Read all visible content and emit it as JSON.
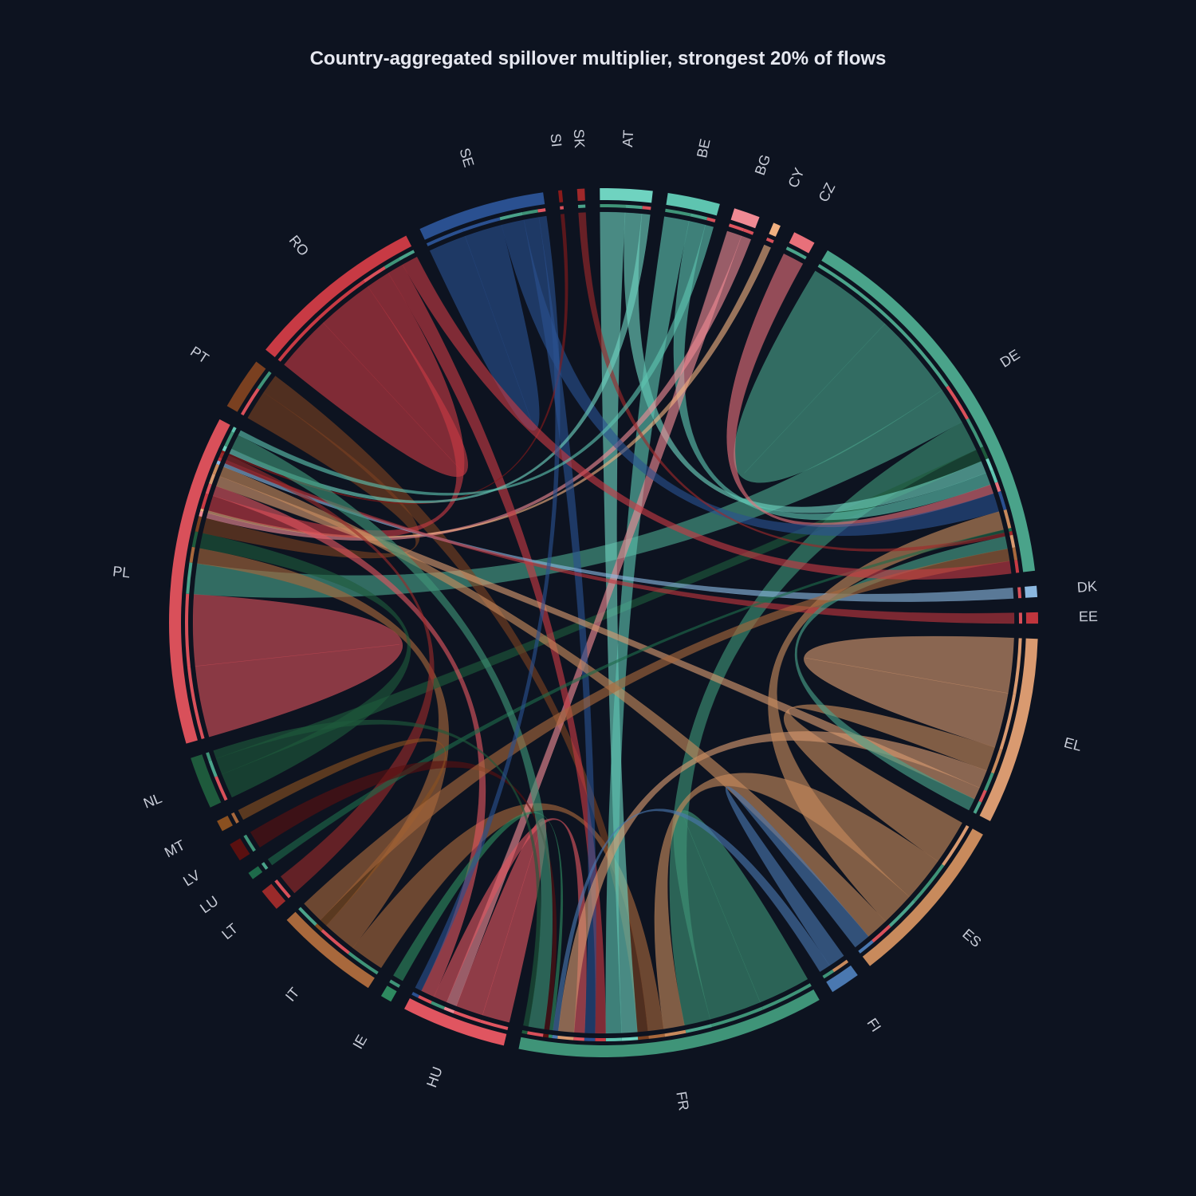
{
  "chart_data": {
    "type": "chord",
    "title": "Country-aggregated spillover multiplier, strongest 20% of flows",
    "categories": [
      "AT",
      "BE",
      "BG",
      "CY",
      "CZ",
      "DE",
      "DK",
      "EE",
      "EL",
      "ES",
      "FI",
      "FR",
      "HU",
      "IE",
      "IT",
      "LT",
      "LU",
      "LV",
      "MT",
      "NL",
      "PL",
      "PT",
      "RO",
      "SE",
      "SI",
      "SK"
    ],
    "values": [
      7,
      7,
      3.5,
      1,
      3,
      52,
      1.5,
      1.5,
      25,
      23,
      4,
      41,
      14,
      1.5,
      14,
      3,
      1,
      2.5,
      1.5,
      7,
      44,
      7,
      24,
      17,
      0.5,
      1
    ],
    "colors": [
      "#6fd3c0",
      "#5ec4b0",
      "#f08a94",
      "#f0b080",
      "#e8707a",
      "#4aa38a",
      "#8bb8e0",
      "#c0353d",
      "#d99a70",
      "#c88a5c",
      "#4a78b0",
      "#3f9478",
      "#e05560",
      "#2e8a60",
      "#a8683c",
      "#9a2a2a",
      "#1e6a4a",
      "#5a1010",
      "#8a5020",
      "#1e5a3c",
      "#d9505a",
      "#7a4020",
      "#c83a44",
      "#2a5090",
      "#8a1a1a",
      "#a0282a"
    ],
    "flows": [
      {
        "source": 20,
        "target": 20,
        "value": 14
      },
      {
        "source": 5,
        "target": 5,
        "value": 14
      },
      {
        "source": 8,
        "target": 8,
        "value": 9
      },
      {
        "source": 11,
        "target": 11,
        "value": 10
      },
      {
        "source": 22,
        "target": 22,
        "value": 7
      },
      {
        "source": 23,
        "target": 23,
        "value": 5
      },
      {
        "source": 12,
        "target": 12,
        "value": 4
      },
      {
        "source": 5,
        "target": 20,
        "value": 6
      },
      {
        "source": 11,
        "target": 5,
        "value": 5
      },
      {
        "source": 9,
        "target": 8,
        "value": 4
      },
      {
        "source": 9,
        "target": 11,
        "value": 4
      },
      {
        "source": 14,
        "target": 11,
        "value": 3
      },
      {
        "source": 14,
        "target": 20,
        "value": 3
      },
      {
        "source": 19,
        "target": 20,
        "value": 3
      },
      {
        "source": 19,
        "target": 5,
        "value": 2
      },
      {
        "source": 21,
        "target": 20,
        "value": 3
      },
      {
        "source": 21,
        "target": 11,
        "value": 2
      },
      {
        "source": 0,
        "target": 11,
        "value": 3
      },
      {
        "source": 0,
        "target": 5,
        "value": 2
      },
      {
        "source": 1,
        "target": 11,
        "value": 3
      },
      {
        "source": 1,
        "target": 5,
        "value": 2
      },
      {
        "source": 2,
        "target": 12,
        "value": 1.5
      },
      {
        "source": 2,
        "target": 20,
        "value": 1
      },
      {
        "source": 4,
        "target": 5,
        "value": 1.5
      },
      {
        "source": 3,
        "target": 20,
        "value": 0.5
      },
      {
        "source": 22,
        "target": 20,
        "value": 3
      },
      {
        "source": 22,
        "target": 11,
        "value": 2
      },
      {
        "source": 23,
        "target": 5,
        "value": 3
      },
      {
        "source": 23,
        "target": 11,
        "value": 2
      },
      {
        "source": 12,
        "target": 11,
        "value": 2
      },
      {
        "source": 12,
        "target": 20,
        "value": 2
      },
      {
        "source": 8,
        "target": 11,
        "value": 3
      },
      {
        "source": 8,
        "target": 20,
        "value": 2
      },
      {
        "source": 9,
        "target": 5,
        "value": 3
      },
      {
        "source": 9,
        "target": 20,
        "value": 2
      },
      {
        "source": 10,
        "target": 9,
        "value": 1.5
      },
      {
        "source": 10,
        "target": 11,
        "value": 1
      },
      {
        "source": 6,
        "target": 20,
        "value": 0.7
      },
      {
        "source": 7,
        "target": 20,
        "value": 0.7
      },
      {
        "source": 13,
        "target": 11,
        "value": 0.7
      },
      {
        "source": 15,
        "target": 20,
        "value": 1
      },
      {
        "source": 16,
        "target": 5,
        "value": 0.5
      },
      {
        "source": 17,
        "target": 11,
        "value": 1
      },
      {
        "source": 18,
        "target": 14,
        "value": 0.7
      },
      {
        "source": 24,
        "target": 20,
        "value": 0.4
      },
      {
        "source": 25,
        "target": 5,
        "value": 0.6
      },
      {
        "source": 0,
        "target": 20,
        "value": 1
      },
      {
        "source": 5,
        "target": 8,
        "value": 2
      },
      {
        "source": 11,
        "target": 20,
        "value": 3
      },
      {
        "source": 14,
        "target": 5,
        "value": 2
      },
      {
        "source": 19,
        "target": 11,
        "value": 1
      },
      {
        "source": 22,
        "target": 5,
        "value": 2
      },
      {
        "source": 23,
        "target": 12,
        "value": 1
      },
      {
        "source": 1,
        "target": 20,
        "value": 1
      }
    ]
  }
}
